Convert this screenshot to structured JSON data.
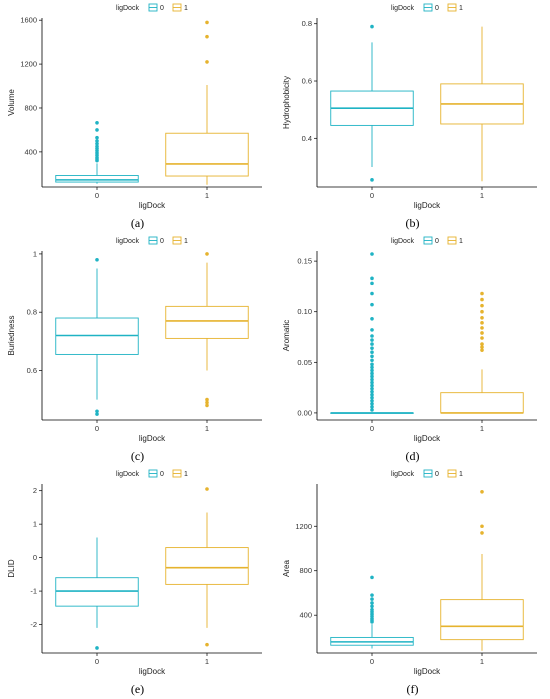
{
  "colors": {
    "group0": "#1fb3c4",
    "group1": "#e6b32e",
    "axis": "#000000"
  },
  "chart_data": [
    {
      "type": "box",
      "caption": "(a)",
      "xlabel": "ligDock",
      "ylabel": "Volume",
      "legend": {
        "title": "ligDock",
        "entries": [
          "0",
          "1"
        ],
        "placement": "top"
      },
      "categories": [
        "0",
        "1"
      ],
      "ylim": [
        80,
        1620
      ],
      "yticks": [
        400,
        800,
        1200,
        1600
      ],
      "boxes": [
        {
          "group": "0",
          "lower": 110,
          "q1": 125,
          "median": 145,
          "q3": 185,
          "upper": 295,
          "outliers": [
            320,
            335,
            350,
            370,
            390,
            410,
            430,
            450,
            475,
            500,
            530,
            600,
            665
          ]
        },
        {
          "group": "1",
          "lower": 100,
          "q1": 180,
          "median": 290,
          "q3": 570,
          "upper": 1010,
          "outliers": [
            1220,
            1450,
            1580
          ]
        }
      ]
    },
    {
      "type": "box",
      "caption": "(b)",
      "xlabel": "ligDock",
      "ylabel": "Hydrophobicity",
      "legend": {
        "title": "ligDock",
        "entries": [
          "0",
          "1"
        ],
        "placement": "top"
      },
      "categories": [
        "0",
        "1"
      ],
      "ylim": [
        0.23,
        0.82
      ],
      "yticks": [
        0.4,
        0.6,
        0.8
      ],
      "boxes": [
        {
          "group": "0",
          "lower": 0.3,
          "q1": 0.445,
          "median": 0.505,
          "q3": 0.565,
          "upper": 0.735,
          "outliers": [
            0.255,
            0.79
          ]
        },
        {
          "group": "1",
          "lower": 0.25,
          "q1": 0.45,
          "median": 0.52,
          "q3": 0.59,
          "upper": 0.79,
          "outliers": []
        }
      ]
    },
    {
      "type": "box",
      "caption": "(c)",
      "xlabel": "ligDock",
      "ylabel": "Buriedness",
      "legend": {
        "title": "ligDock",
        "entries": [
          "0",
          "1"
        ],
        "placement": "top"
      },
      "categories": [
        "0",
        "1"
      ],
      "ylim": [
        0.43,
        1.01
      ],
      "yticks": [
        0.6,
        0.8,
        1.0
      ],
      "boxes": [
        {
          "group": "0",
          "lower": 0.5,
          "q1": 0.655,
          "median": 0.72,
          "q3": 0.78,
          "upper": 0.95,
          "outliers": [
            0.45,
            0.46,
            0.98
          ]
        },
        {
          "group": "1",
          "lower": 0.6,
          "q1": 0.71,
          "median": 0.77,
          "q3": 0.82,
          "upper": 0.97,
          "outliers": [
            0.48,
            0.49,
            0.5,
            1.0
          ]
        }
      ]
    },
    {
      "type": "box",
      "caption": "(d)",
      "xlabel": "ligDock",
      "ylabel": "Aromatic",
      "legend": {
        "title": "ligDock",
        "entries": [
          "0",
          "1"
        ],
        "placement": "top"
      },
      "categories": [
        "0",
        "1"
      ],
      "ylim": [
        -0.007,
        0.16
      ],
      "yticks": [
        0.0,
        0.05,
        0.1,
        0.15
      ],
      "tickLabels": [
        "0.00",
        "0.05",
        "0.10",
        "0.15"
      ],
      "boxes": [
        {
          "group": "0",
          "lower": 0,
          "q1": 0,
          "median": 0,
          "q3": 0,
          "upper": 0,
          "outliers": [
            0.003,
            0.006,
            0.009,
            0.012,
            0.015,
            0.018,
            0.021,
            0.024,
            0.027,
            0.03,
            0.033,
            0.036,
            0.039,
            0.042,
            0.045,
            0.048,
            0.052,
            0.056,
            0.06,
            0.064,
            0.068,
            0.072,
            0.076,
            0.082,
            0.093,
            0.107,
            0.118,
            0.128,
            0.133,
            0.157
          ]
        },
        {
          "group": "1",
          "lower": 0,
          "q1": 0,
          "median": 0,
          "q3": 0.02,
          "upper": 0.043,
          "outliers": [
            0.062,
            0.065,
            0.068,
            0.074,
            0.079,
            0.084,
            0.089,
            0.094,
            0.1,
            0.106,
            0.112,
            0.118
          ]
        }
      ]
    },
    {
      "type": "box",
      "caption": "(e)",
      "xlabel": "ligDock",
      "ylabel": "DLID",
      "legend": {
        "title": "ligDock",
        "entries": [
          "0",
          "1"
        ],
        "placement": "top"
      },
      "categories": [
        "0",
        "1"
      ],
      "ylim": [
        -2.85,
        2.2
      ],
      "yticks": [
        -2,
        -1,
        0,
        1,
        2
      ],
      "boxes": [
        {
          "group": "0",
          "lower": -2.1,
          "q1": -1.45,
          "median": -1.0,
          "q3": -0.6,
          "upper": 0.6,
          "outliers": [
            -2.7
          ]
        },
        {
          "group": "1",
          "lower": -2.1,
          "q1": -0.8,
          "median": -0.3,
          "q3": 0.3,
          "upper": 1.35,
          "outliers": [
            -2.6,
            2.05
          ]
        }
      ]
    },
    {
      "type": "box",
      "caption": "(f)",
      "xlabel": "ligDock",
      "ylabel": "Area",
      "legend": {
        "title": "ligDock",
        "entries": [
          "0",
          "1"
        ],
        "placement": "top"
      },
      "categories": [
        "0",
        "1"
      ],
      "ylim": [
        60,
        1580
      ],
      "yticks": [
        400,
        800,
        1200
      ],
      "boxes": [
        {
          "group": "0",
          "lower": 100,
          "q1": 130,
          "median": 160,
          "q3": 200,
          "upper": 320,
          "outliers": [
            340,
            355,
            370,
            390,
            410,
            430,
            450,
            480,
            510,
            545,
            580,
            740
          ]
        },
        {
          "group": "1",
          "lower": 80,
          "q1": 180,
          "median": 300,
          "q3": 540,
          "upper": 950,
          "outliers": [
            1140,
            1200,
            1510
          ]
        }
      ]
    }
  ]
}
